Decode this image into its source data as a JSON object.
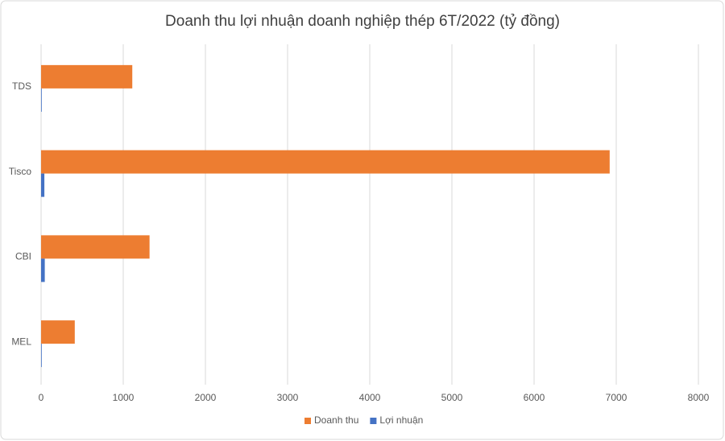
{
  "chart_data": {
    "type": "hbar",
    "title": "Doanh thu lợi nhuận doanh nghiệp thép 6T/2022 (tỷ đồng)",
    "categories": [
      "TDS",
      "Tisco",
      "CBI",
      "MEL"
    ],
    "series": [
      {
        "name": "Doanh thu",
        "color": "#ed7d31",
        "values": [
          1110,
          6920,
          1320,
          410
        ]
      },
      {
        "name": "Lợi nhuận",
        "color": "#4472c4",
        "values": [
          5,
          40,
          45,
          5
        ]
      }
    ],
    "xlim": [
      0,
      8000
    ],
    "xticks": [
      0,
      1000,
      2000,
      3000,
      4000,
      5000,
      6000,
      7000,
      8000
    ],
    "grid": true,
    "legend": "bottom"
  }
}
